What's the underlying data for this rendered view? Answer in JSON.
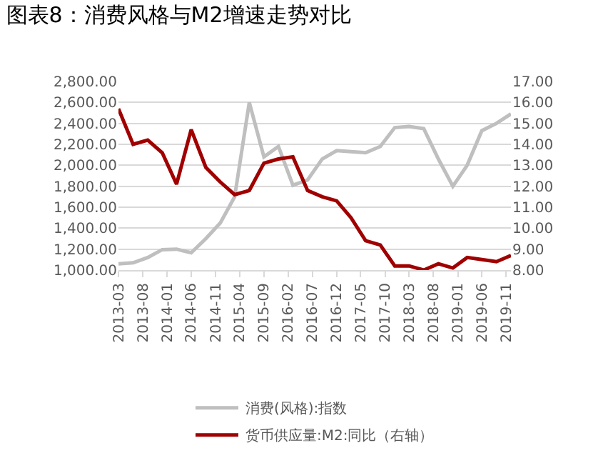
{
  "chart_data": {
    "type": "line",
    "title": "图表8：消费风格与M2增速走势对比",
    "x": [
      "2013-03",
      "2013-06",
      "2013-09",
      "2013-12",
      "2014-03",
      "2014-06",
      "2014-09",
      "2014-12",
      "2015-03",
      "2015-06",
      "2015-09",
      "2015-12",
      "2016-03",
      "2016-06",
      "2016-09",
      "2016-12",
      "2017-03",
      "2017-06",
      "2017-09",
      "2017-12",
      "2018-03",
      "2018-06",
      "2018-09",
      "2018-12",
      "2019-03",
      "2019-06",
      "2019-09",
      "2019-12"
    ],
    "series": [
      {
        "name": "消费(风格):指数",
        "color": "#bfbfbf",
        "values": [
          1060,
          1070,
          1120,
          1195,
          1200,
          1165,
          1300,
          1450,
          1700,
          2600,
          2080,
          2180,
          1810,
          1860,
          2060,
          2140,
          2130,
          2120,
          2180,
          2360,
          2370,
          2350,
          2060,
          1800,
          2000,
          2330,
          2400,
          2490
        ]
      },
      {
        "name": "货币供应量:M2:同比（右轴）",
        "color": "#a00000",
        "axis": "y2",
        "values": [
          15.7,
          14.0,
          14.2,
          13.6,
          12.1,
          14.7,
          12.9,
          12.2,
          11.6,
          11.8,
          13.1,
          13.3,
          13.4,
          11.8,
          11.5,
          11.3,
          10.5,
          9.4,
          9.2,
          8.2,
          8.2,
          8.0,
          8.3,
          8.1,
          8.6,
          8.5,
          8.4,
          8.7
        ]
      }
    ],
    "xlim": [
      "2013-03",
      "2019-12"
    ],
    "xticks": [
      "2013-03",
      "2013-08",
      "2014-01",
      "2014-06",
      "2014-11",
      "2015-04",
      "2015-09",
      "2016-02",
      "2016-07",
      "2016-12",
      "2017-05",
      "2017-10",
      "2018-03",
      "2018-08",
      "2019-01",
      "2019-06",
      "2019-11"
    ],
    "ylim": [
      1000,
      2800
    ],
    "yticks": [
      {
        "value": 1000,
        "label": "1,000.00"
      },
      {
        "value": 1200,
        "label": "1,200.00"
      },
      {
        "value": 1400,
        "label": "1,400.00"
      },
      {
        "value": 1600,
        "label": "1,600.00"
      },
      {
        "value": 1800,
        "label": "1,800.00"
      },
      {
        "value": 2000,
        "label": "2,000.00"
      },
      {
        "value": 2200,
        "label": "2,200.00"
      },
      {
        "value": 2400,
        "label": "2,400.00"
      },
      {
        "value": 2600,
        "label": "2,600.00"
      },
      {
        "value": 2800,
        "label": "2,800.00"
      }
    ],
    "y2lim": [
      8,
      17
    ],
    "y2ticks": [
      {
        "value": 8,
        "label": "8.00"
      },
      {
        "value": 9,
        "label": "9.00"
      },
      {
        "value": 10,
        "label": "10.00"
      },
      {
        "value": 11,
        "label": "11.00"
      },
      {
        "value": 12,
        "label": "12.00"
      },
      {
        "value": 13,
        "label": "13.00"
      },
      {
        "value": 14,
        "label": "14.00"
      },
      {
        "value": 15,
        "label": "15.00"
      },
      {
        "value": 16,
        "label": "16.00"
      },
      {
        "value": 17,
        "label": "17.00"
      }
    ],
    "grid": "y",
    "legend": "bottom",
    "marker": "none",
    "line_style": "solid"
  }
}
